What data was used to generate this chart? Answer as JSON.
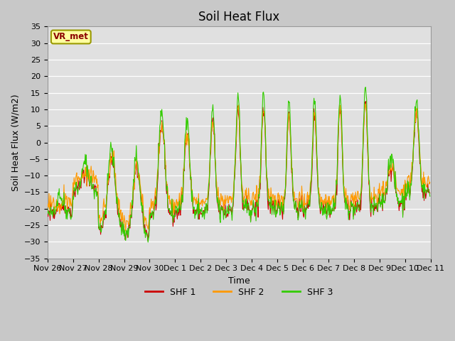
{
  "title": "Soil Heat Flux",
  "ylabel": "Soil Heat Flux (W/m2)",
  "xlabel": "Time",
  "ylim": [
    -35,
    35
  ],
  "yticks": [
    -35,
    -30,
    -25,
    -20,
    -15,
    -10,
    -5,
    0,
    5,
    10,
    15,
    20,
    25,
    30,
    35
  ],
  "fig_bg": "#c8c8c8",
  "plot_bg": "#e0e0e0",
  "legend_label": "VR_met",
  "series_labels": [
    "SHF 1",
    "SHF 2",
    "SHF 3"
  ],
  "series_colors": [
    "#cc0000",
    "#ff9900",
    "#33cc00"
  ],
  "line_width": 0.8,
  "title_fontsize": 12,
  "axis_fontsize": 9,
  "tick_fontsize": 8,
  "tick_labels": [
    "Nov 26",
    "Nov 27",
    "Nov 28",
    "Nov 29",
    "Nov 30",
    "Dec 1",
    "Dec 2",
    "Dec 3",
    "Dec 4",
    "Dec 5",
    "Dec 6",
    "Dec 7",
    "Dec 8",
    "Dec 9",
    "Dec 10",
    "Dec 11"
  ]
}
